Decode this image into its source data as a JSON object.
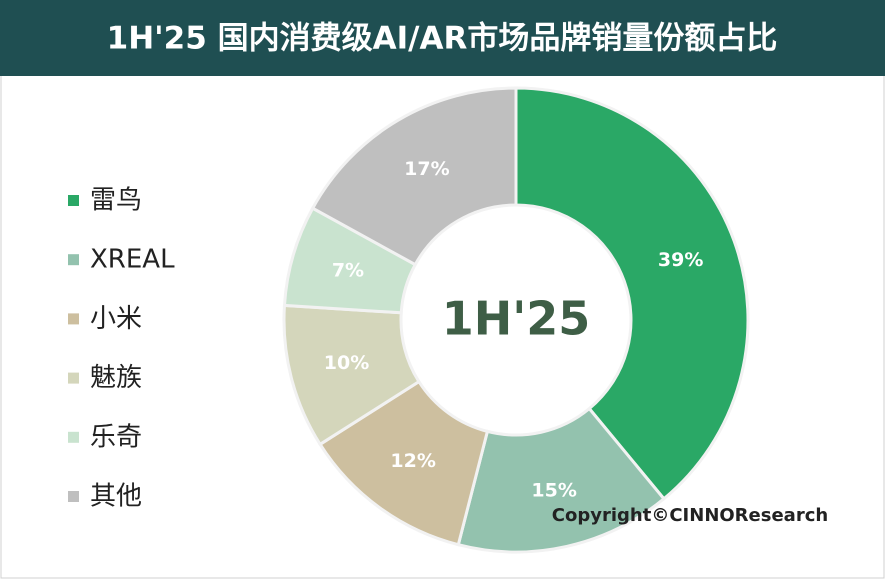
{
  "chart_data": {
    "type": "donut",
    "title": "1H'25 国内消费级AI/AR市场品牌销量份额占比",
    "center_label": "1H'25",
    "categories": [
      "雷鸟",
      "XREAL",
      "小米",
      "魅族",
      "乐奇",
      "其他"
    ],
    "values": [
      39,
      15,
      12,
      10,
      7,
      17
    ],
    "value_labels": [
      "39%",
      "15%",
      "12%",
      "10%",
      "7%",
      "17%"
    ],
    "colors": [
      "#2aa866",
      "#93c2ae",
      "#cdbf9f",
      "#d4d6bb",
      "#c9e3cf",
      "#bfbfbf"
    ],
    "legend": "left",
    "copyright": "Copyright©CINNOResearch"
  }
}
